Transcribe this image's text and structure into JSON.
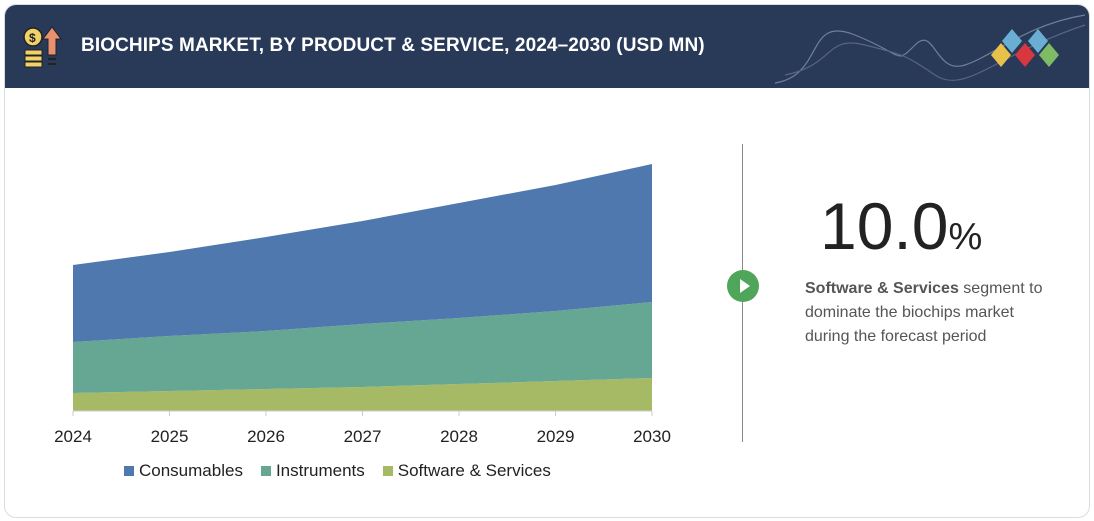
{
  "header": {
    "title": "BIOCHIPS MARKET, BY PRODUCT & SERVICE, 2024–2030 (USD MN)",
    "icon": "money-growth-icon",
    "logo": "diamond-logo"
  },
  "chart_data": {
    "type": "area",
    "stacked": true,
    "categories": [
      "2024",
      "2025",
      "2026",
      "2027",
      "2028",
      "2029",
      "2030"
    ],
    "series": [
      {
        "name": "Software & Services",
        "color": "#a6b964",
        "values": [
          18,
          20,
          22,
          24,
          27,
          30,
          33
        ]
      },
      {
        "name": "Instruments",
        "color": "#65a792",
        "values": [
          51,
          55,
          58,
          63,
          66,
          70,
          76
        ]
      },
      {
        "name": "Consumables",
        "color": "#4f79ae",
        "values": [
          77,
          84,
          94,
          103,
          115,
          126,
          138
        ]
      }
    ],
    "legend_order": [
      "Consumables",
      "Instruments",
      "Software & Services"
    ],
    "ylim": [
      0,
      250
    ],
    "y_axis_shown": false,
    "grid": false,
    "legend": "bottom"
  },
  "callout": {
    "value": "10.0",
    "unit": "%",
    "bold": "Software & Services",
    "text": " segment to dominate the biochips market during the forecast period",
    "icon": "play-icon"
  }
}
